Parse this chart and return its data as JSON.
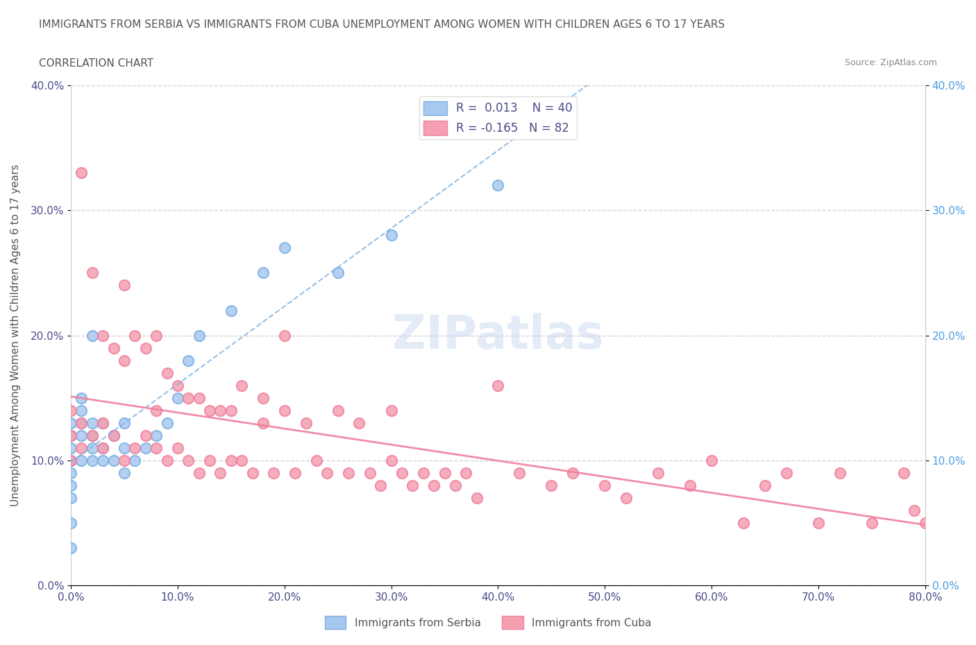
{
  "title": "IMMIGRANTS FROM SERBIA VS IMMIGRANTS FROM CUBA UNEMPLOYMENT AMONG WOMEN WITH CHILDREN AGES 6 TO 17 YEARS",
  "subtitle": "CORRELATION CHART",
  "source": "Source: ZipAtlas.com",
  "xlabel": "",
  "ylabel": "Unemployment Among Women with Children Ages 6 to 17 years",
  "xlim": [
    0,
    0.8
  ],
  "ylim": [
    0,
    0.4
  ],
  "xticks": [
    0.0,
    0.1,
    0.2,
    0.3,
    0.4,
    0.5,
    0.6,
    0.7,
    0.8
  ],
  "yticks": [
    0.0,
    0.1,
    0.2,
    0.3,
    0.4
  ],
  "serbia_R": 0.013,
  "serbia_N": 40,
  "cuba_R": -0.165,
  "cuba_N": 82,
  "serbia_color": "#a8c8f0",
  "cuba_color": "#f4a0b0",
  "serbia_trend_color": "#7ab0e0",
  "cuba_trend_color": "#f080a0",
  "watermark": "ZIPatlas",
  "serbia_x": [
    0.0,
    0.0,
    0.0,
    0.0,
    0.0,
    0.0,
    0.0,
    0.0,
    0.0,
    0.01,
    0.01,
    0.01,
    0.01,
    0.01,
    0.02,
    0.02,
    0.02,
    0.02,
    0.02,
    0.03,
    0.03,
    0.03,
    0.04,
    0.04,
    0.05,
    0.05,
    0.05,
    0.06,
    0.07,
    0.08,
    0.09,
    0.1,
    0.11,
    0.12,
    0.15,
    0.18,
    0.2,
    0.25,
    0.3,
    0.4
  ],
  "serbia_y": [
    0.03,
    0.05,
    0.07,
    0.08,
    0.09,
    0.1,
    0.11,
    0.12,
    0.13,
    0.1,
    0.12,
    0.13,
    0.14,
    0.15,
    0.1,
    0.11,
    0.12,
    0.13,
    0.2,
    0.1,
    0.11,
    0.13,
    0.1,
    0.12,
    0.09,
    0.11,
    0.13,
    0.1,
    0.11,
    0.12,
    0.13,
    0.15,
    0.18,
    0.2,
    0.22,
    0.25,
    0.27,
    0.25,
    0.28,
    0.32
  ],
  "cuba_x": [
    0.0,
    0.0,
    0.0,
    0.01,
    0.01,
    0.01,
    0.02,
    0.02,
    0.03,
    0.03,
    0.03,
    0.04,
    0.04,
    0.05,
    0.05,
    0.06,
    0.06,
    0.07,
    0.07,
    0.08,
    0.08,
    0.09,
    0.09,
    0.1,
    0.1,
    0.11,
    0.11,
    0.12,
    0.12,
    0.13,
    0.13,
    0.14,
    0.14,
    0.15,
    0.15,
    0.16,
    0.16,
    0.17,
    0.18,
    0.18,
    0.19,
    0.2,
    0.2,
    0.21,
    0.22,
    0.23,
    0.24,
    0.25,
    0.26,
    0.27,
    0.28,
    0.29,
    0.3,
    0.3,
    0.31,
    0.32,
    0.33,
    0.34,
    0.35,
    0.36,
    0.37,
    0.38,
    0.4,
    0.42,
    0.45,
    0.47,
    0.5,
    0.52,
    0.55,
    0.58,
    0.6,
    0.63,
    0.65,
    0.67,
    0.7,
    0.72,
    0.75,
    0.78,
    0.79,
    0.8,
    0.05,
    0.08
  ],
  "cuba_y": [
    0.1,
    0.12,
    0.14,
    0.11,
    0.13,
    0.33,
    0.12,
    0.25,
    0.11,
    0.13,
    0.2,
    0.12,
    0.19,
    0.1,
    0.18,
    0.11,
    0.2,
    0.12,
    0.19,
    0.11,
    0.2,
    0.1,
    0.17,
    0.11,
    0.16,
    0.1,
    0.15,
    0.09,
    0.15,
    0.1,
    0.14,
    0.09,
    0.14,
    0.1,
    0.14,
    0.1,
    0.16,
    0.09,
    0.13,
    0.15,
    0.09,
    0.14,
    0.2,
    0.09,
    0.13,
    0.1,
    0.09,
    0.14,
    0.09,
    0.13,
    0.09,
    0.08,
    0.1,
    0.14,
    0.09,
    0.08,
    0.09,
    0.08,
    0.09,
    0.08,
    0.09,
    0.07,
    0.16,
    0.09,
    0.08,
    0.09,
    0.08,
    0.07,
    0.09,
    0.08,
    0.1,
    0.05,
    0.08,
    0.09,
    0.05,
    0.09,
    0.05,
    0.09,
    0.06,
    0.05,
    0.24,
    0.14
  ]
}
